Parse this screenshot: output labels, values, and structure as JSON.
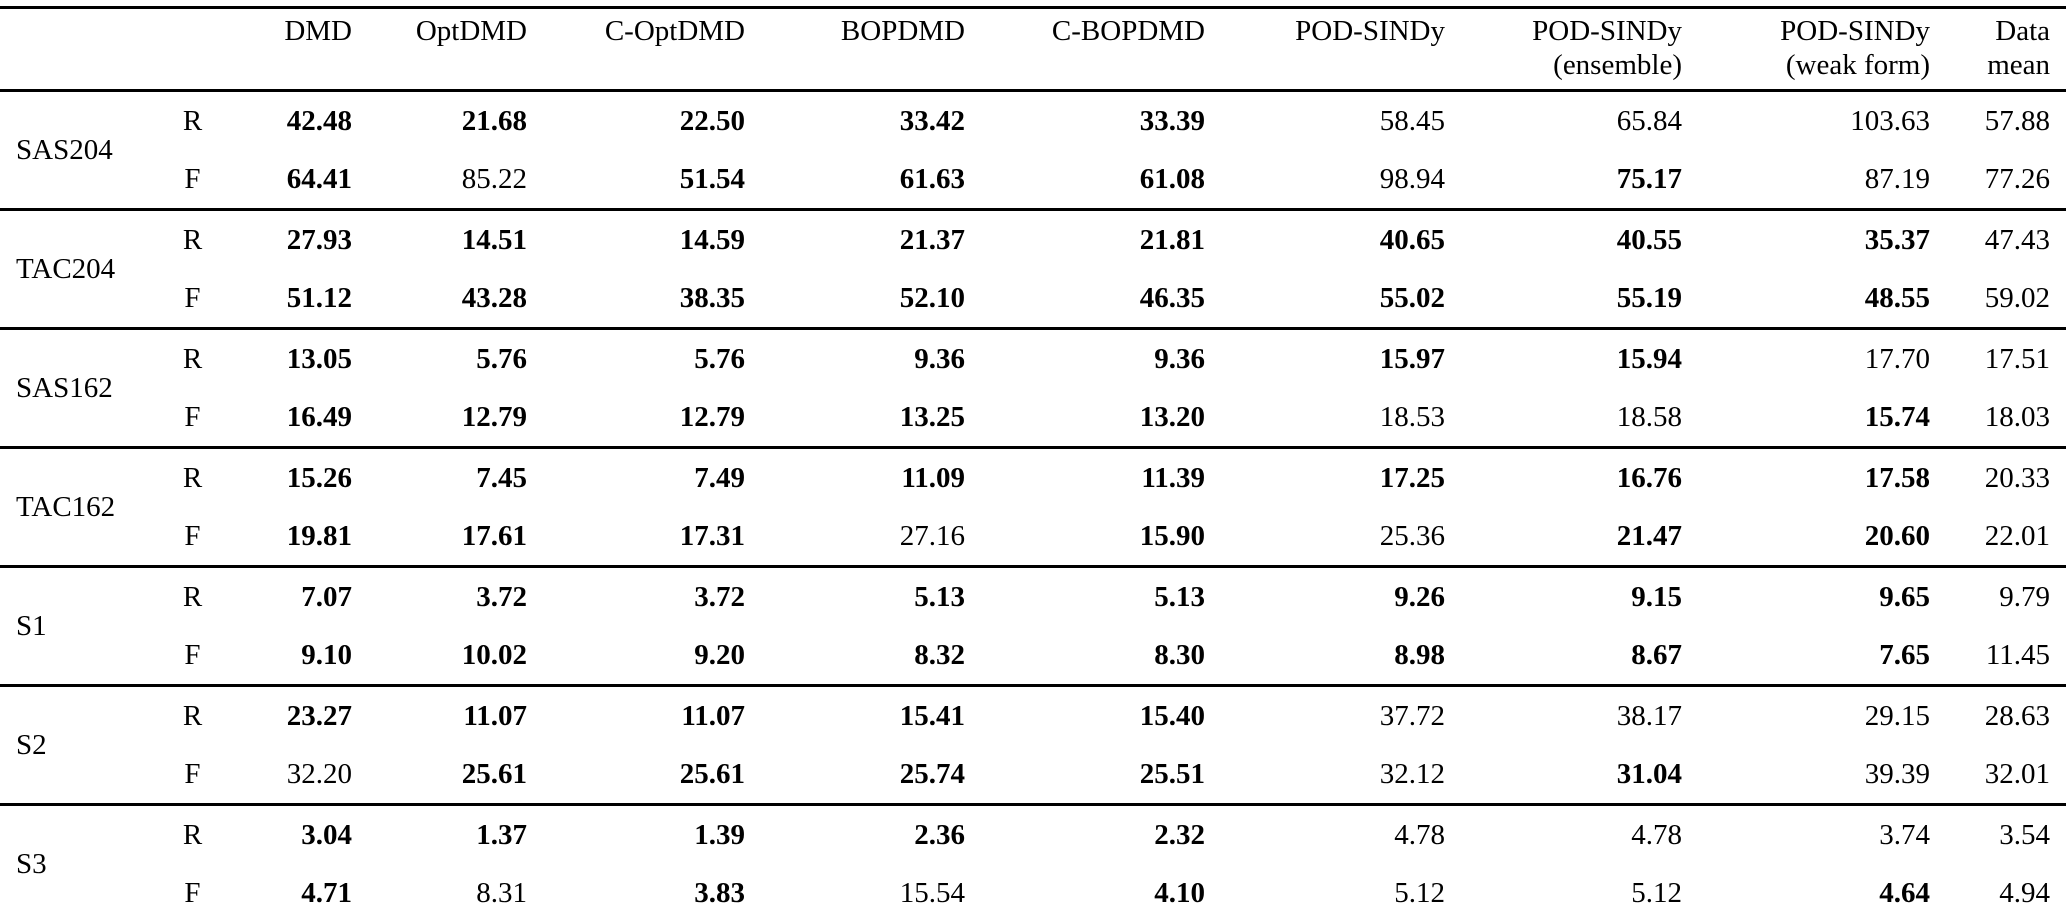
{
  "table": {
    "corner_label": "",
    "columns": [
      {
        "line1": "DMD",
        "line2": ""
      },
      {
        "line1": "OptDMD",
        "line2": ""
      },
      {
        "line1": "C-OptDMD",
        "line2": ""
      },
      {
        "line1": "BOPDMD",
        "line2": ""
      },
      {
        "line1": "C-BOPDMD",
        "line2": ""
      },
      {
        "line1": "POD-SINDy",
        "line2": ""
      },
      {
        "line1": "POD-SINDy",
        "line2": "(ensemble)"
      },
      {
        "line1": "POD-SINDy",
        "line2": "(weak form)"
      },
      {
        "line1": "Data",
        "line2": "mean"
      }
    ],
    "groups": [
      {
        "name": "SAS204",
        "rows": [
          {
            "label": "R",
            "values": [
              "42.48",
              "21.68",
              "22.50",
              "33.42",
              "33.39",
              "58.45",
              "65.84",
              "103.63",
              "57.88"
            ],
            "bold": [
              true,
              true,
              true,
              true,
              true,
              false,
              false,
              false,
              false
            ]
          },
          {
            "label": "F",
            "values": [
              "64.41",
              "85.22",
              "51.54",
              "61.63",
              "61.08",
              "98.94",
              "75.17",
              "87.19",
              "77.26"
            ],
            "bold": [
              true,
              false,
              true,
              true,
              true,
              false,
              true,
              false,
              false
            ]
          }
        ]
      },
      {
        "name": "TAC204",
        "rows": [
          {
            "label": "R",
            "values": [
              "27.93",
              "14.51",
              "14.59",
              "21.37",
              "21.81",
              "40.65",
              "40.55",
              "35.37",
              "47.43"
            ],
            "bold": [
              true,
              true,
              true,
              true,
              true,
              true,
              true,
              true,
              false
            ]
          },
          {
            "label": "F",
            "values": [
              "51.12",
              "43.28",
              "38.35",
              "52.10",
              "46.35",
              "55.02",
              "55.19",
              "48.55",
              "59.02"
            ],
            "bold": [
              true,
              true,
              true,
              true,
              true,
              true,
              true,
              true,
              false
            ]
          }
        ]
      },
      {
        "name": "SAS162",
        "rows": [
          {
            "label": "R",
            "values": [
              "13.05",
              "5.76",
              "5.76",
              "9.36",
              "9.36",
              "15.97",
              "15.94",
              "17.70",
              "17.51"
            ],
            "bold": [
              true,
              true,
              true,
              true,
              true,
              true,
              true,
              false,
              false
            ]
          },
          {
            "label": "F",
            "values": [
              "16.49",
              "12.79",
              "12.79",
              "13.25",
              "13.20",
              "18.53",
              "18.58",
              "15.74",
              "18.03"
            ],
            "bold": [
              true,
              true,
              true,
              true,
              true,
              false,
              false,
              true,
              false
            ]
          }
        ]
      },
      {
        "name": "TAC162",
        "rows": [
          {
            "label": "R",
            "values": [
              "15.26",
              "7.45",
              "7.49",
              "11.09",
              "11.39",
              "17.25",
              "16.76",
              "17.58",
              "20.33"
            ],
            "bold": [
              true,
              true,
              true,
              true,
              true,
              true,
              true,
              true,
              false
            ]
          },
          {
            "label": "F",
            "values": [
              "19.81",
              "17.61",
              "17.31",
              "27.16",
              "15.90",
              "25.36",
              "21.47",
              "20.60",
              "22.01"
            ],
            "bold": [
              true,
              true,
              true,
              false,
              true,
              false,
              true,
              true,
              false
            ]
          }
        ]
      },
      {
        "name": "S1",
        "rows": [
          {
            "label": "R",
            "values": [
              "7.07",
              "3.72",
              "3.72",
              "5.13",
              "5.13",
              "9.26",
              "9.15",
              "9.65",
              "9.79"
            ],
            "bold": [
              true,
              true,
              true,
              true,
              true,
              true,
              true,
              true,
              false
            ]
          },
          {
            "label": "F",
            "values": [
              "9.10",
              "10.02",
              "9.20",
              "8.32",
              "8.30",
              "8.98",
              "8.67",
              "7.65",
              "11.45"
            ],
            "bold": [
              true,
              true,
              true,
              true,
              true,
              true,
              true,
              true,
              false
            ]
          }
        ]
      },
      {
        "name": "S2",
        "rows": [
          {
            "label": "R",
            "values": [
              "23.27",
              "11.07",
              "11.07",
              "15.41",
              "15.40",
              "37.72",
              "38.17",
              "29.15",
              "28.63"
            ],
            "bold": [
              true,
              true,
              true,
              true,
              true,
              false,
              false,
              false,
              false
            ]
          },
          {
            "label": "F",
            "values": [
              "32.20",
              "25.61",
              "25.61",
              "25.74",
              "25.51",
              "32.12",
              "31.04",
              "39.39",
              "32.01"
            ],
            "bold": [
              false,
              true,
              true,
              true,
              true,
              false,
              true,
              false,
              false
            ]
          }
        ]
      },
      {
        "name": "S3",
        "rows": [
          {
            "label": "R",
            "values": [
              "3.04",
              "1.37",
              "1.39",
              "2.36",
              "2.32",
              "4.78",
              "4.78",
              "3.74",
              "3.54"
            ],
            "bold": [
              true,
              true,
              true,
              true,
              true,
              false,
              false,
              false,
              false
            ]
          },
          {
            "label": "F",
            "values": [
              "4.71",
              "8.31",
              "3.83",
              "15.54",
              "4.10",
              "5.12",
              "5.12",
              "4.64",
              "4.94"
            ],
            "bold": [
              true,
              false,
              true,
              false,
              true,
              false,
              false,
              true,
              false
            ]
          }
        ]
      }
    ]
  }
}
